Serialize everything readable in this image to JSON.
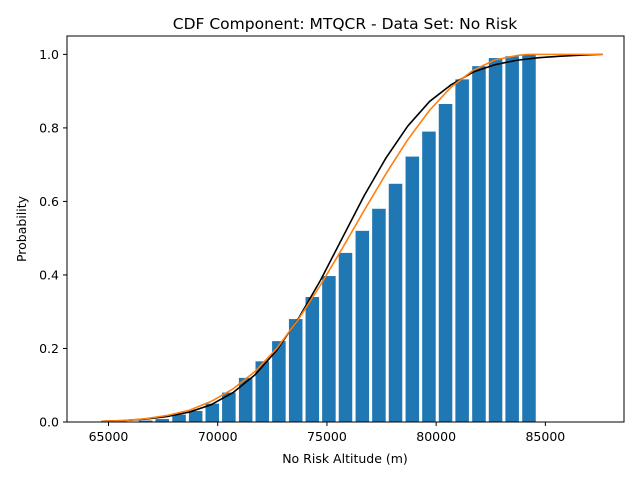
{
  "chart_data": {
    "type": "bar",
    "title": "CDF Component: MTQCR - Data Set: No Risk",
    "xlabel": "No Risk Altitude (m)",
    "ylabel": "Probability",
    "xlim": [
      63100,
      88600
    ],
    "ylim": [
      0,
      1.05
    ],
    "x_ticks": [
      65000,
      70000,
      75000,
      80000,
      85000
    ],
    "x_tick_labels": [
      "65000",
      "70000",
      "75000",
      "80000",
      "85000"
    ],
    "y_ticks": [
      0,
      0.2,
      0.4,
      0.6,
      0.8,
      1.0
    ],
    "y_tick_labels": [
      "0.0",
      "0.2",
      "0.4",
      "0.6",
      "0.8",
      "1.0"
    ],
    "grid": false,
    "bar_width": 620,
    "bars": {
      "color": "#1f77b4",
      "x": [
        66700,
        67460,
        68230,
        68990,
        69750,
        70510,
        71280,
        72040,
        72800,
        73570,
        74330,
        75090,
        75850,
        76620,
        77380,
        78140,
        78910,
        79670,
        80430,
        81190,
        81960,
        82720,
        83480,
        84250
      ],
      "values": [
        0.004,
        0.008,
        0.02,
        0.03,
        0.05,
        0.08,
        0.12,
        0.165,
        0.22,
        0.28,
        0.34,
        0.397,
        0.46,
        0.52,
        0.58,
        0.648,
        0.722,
        0.79,
        0.865,
        0.932,
        0.968,
        0.99,
        0.995,
        1.0
      ]
    },
    "series": [
      {
        "color": "#000000",
        "x": [
          64700,
          65700,
          66700,
          67700,
          68700,
          69700,
          70700,
          71700,
          72700,
          73700,
          74700,
          75700,
          76700,
          77700,
          78700,
          79700,
          80700,
          81700,
          82700,
          83700,
          84700,
          85700,
          86700,
          87600
        ],
        "values": [
          0.002,
          0.004,
          0.008,
          0.015,
          0.027,
          0.047,
          0.08,
          0.128,
          0.195,
          0.282,
          0.385,
          0.5,
          0.615,
          0.718,
          0.805,
          0.872,
          0.918,
          0.952,
          0.972,
          0.984,
          0.991,
          0.995,
          0.998,
          1.0
        ]
      },
      {
        "color": "#ff7f0e",
        "x": [
          64700,
          65700,
          66700,
          67700,
          68700,
          69700,
          70700,
          71700,
          72700,
          73700,
          74700,
          75700,
          76700,
          77700,
          78700,
          79700,
          80700,
          81700,
          82700,
          83700,
          84200,
          85700,
          86700,
          87600
        ],
        "values": [
          0.002,
          0.004,
          0.009,
          0.018,
          0.032,
          0.056,
          0.09,
          0.137,
          0.2,
          0.28,
          0.372,
          0.472,
          0.575,
          0.675,
          0.768,
          0.848,
          0.912,
          0.957,
          0.985,
          0.997,
          1.0,
          1.0,
          1.0,
          1.0
        ]
      }
    ]
  }
}
